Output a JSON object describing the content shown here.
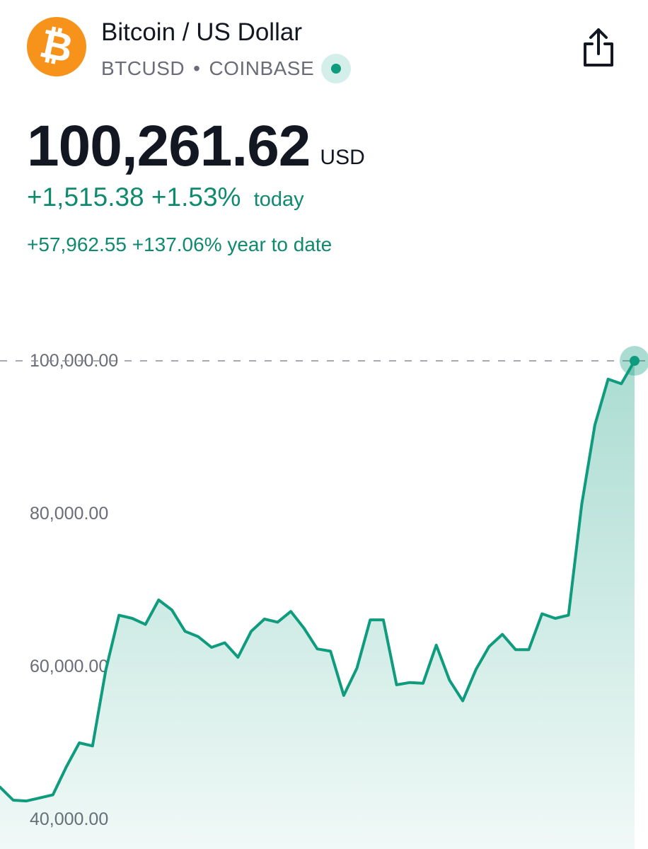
{
  "header": {
    "title": "Bitcoin / US Dollar",
    "ticker": "BTCUSD",
    "separator": "•",
    "exchange": "COINBASE",
    "logo_icon": "bitcoin-logo-icon",
    "logo_glyph": "₿",
    "share_icon": "share-icon"
  },
  "quote": {
    "price": "100,261.62",
    "currency": "USD",
    "today_change": "+1,515.38 +1.53%",
    "today_label": "today",
    "ytd_change": "+57,962.55 +137.06% year to date"
  },
  "colors": {
    "accent": "#0f9b7d",
    "text_positive": "#0f8a6f",
    "logo": "#f7931a",
    "text_primary": "#131722",
    "text_secondary": "#6a6d78"
  },
  "chart_data": {
    "type": "area",
    "yticks": [
      {
        "value": 100000,
        "label": "100,000.00"
      },
      {
        "value": 80000,
        "label": "80,000.00"
      },
      {
        "value": 60000,
        "label": "60,000.00"
      },
      {
        "value": 40000,
        "label": "40,000.00"
      }
    ],
    "values": [
      44200,
      42500,
      42400,
      42800,
      43200,
      46800,
      50000,
      49600,
      59500,
      66700,
      66300,
      65500,
      68700,
      67400,
      64600,
      63900,
      62500,
      63100,
      61200,
      64600,
      66200,
      65800,
      67200,
      65000,
      62300,
      62000,
      56200,
      59800,
      66100,
      66100,
      57600,
      57900,
      57800,
      62800,
      58200,
      55500,
      59600,
      62600,
      64200,
      62200,
      62200,
      66900,
      66300,
      66700,
      81200,
      91600,
      97600,
      97000,
      100000
    ],
    "last_value": 100000,
    "reference_line": 100000
  }
}
